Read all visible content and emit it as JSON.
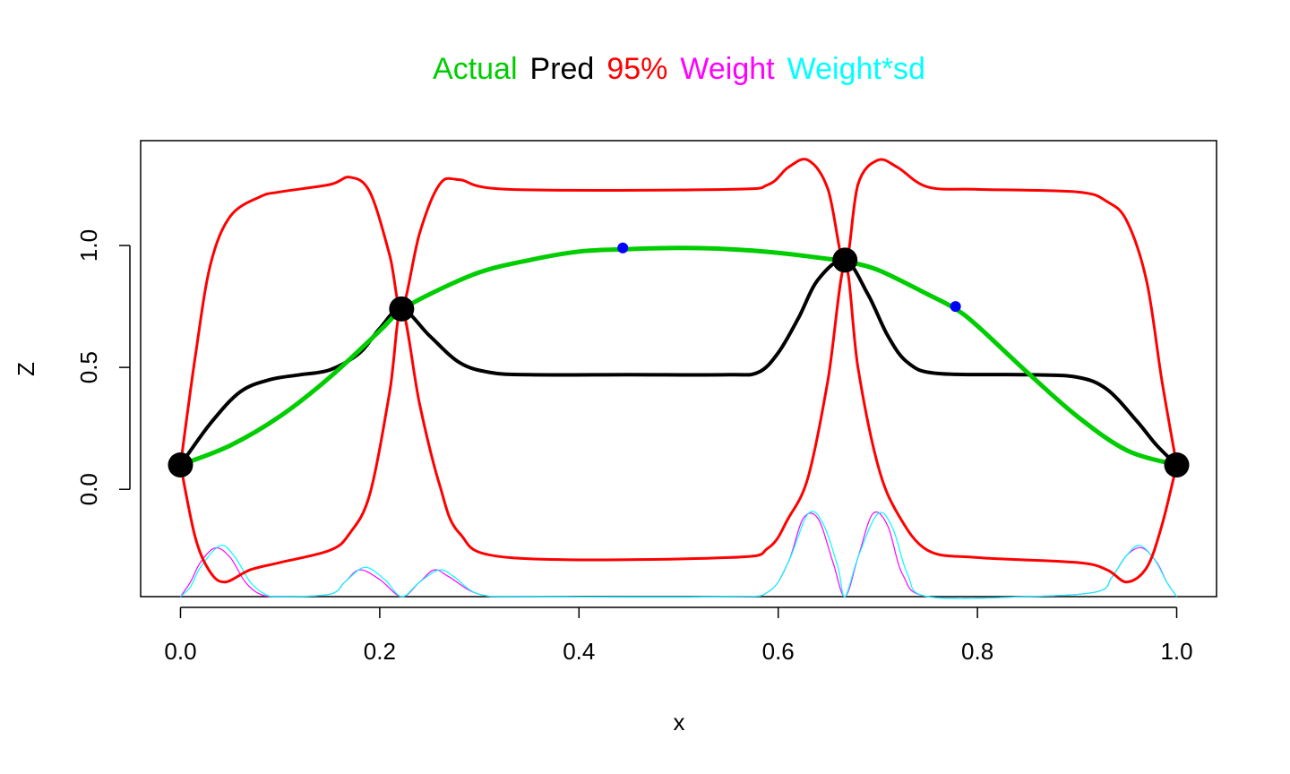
{
  "chart_data": {
    "type": "line",
    "title_parts": [
      {
        "text": "Actual",
        "color": "#00cd00"
      },
      {
        "text": "Pred",
        "color": "#000000"
      },
      {
        "text": "95%",
        "color": "#ff0000"
      },
      {
        "text": "Weight",
        "color": "#ff00ff"
      },
      {
        "text": "Weight*sd",
        "color": "#00ffff"
      }
    ],
    "xlabel": "x",
    "ylabel": "Z",
    "xlim": [
      -0.04,
      1.04
    ],
    "ylim": [
      -0.44,
      1.43
    ],
    "x_ticks": [
      "0.0",
      "0.2",
      "0.4",
      "0.6",
      "0.8",
      "1.0"
    ],
    "y_ticks": [
      "0.0",
      "0.5",
      "1.0"
    ],
    "series": [
      {
        "name": "Actual",
        "color": "#00cd00",
        "x": [
          0,
          0.05,
          0.1,
          0.15,
          0.2,
          0.22,
          0.25,
          0.3,
          0.35,
          0.4,
          0.45,
          0.5,
          0.55,
          0.6,
          0.65,
          0.667,
          0.7,
          0.75,
          0.778,
          0.8,
          0.85,
          0.9,
          0.95,
          1.0
        ],
        "y": [
          0.1,
          0.18,
          0.3,
          0.46,
          0.65,
          0.73,
          0.8,
          0.89,
          0.94,
          0.975,
          0.985,
          0.99,
          0.985,
          0.97,
          0.945,
          0.935,
          0.9,
          0.8,
          0.74,
          0.67,
          0.48,
          0.3,
          0.16,
          0.1
        ]
      },
      {
        "name": "Pred",
        "color": "#000000",
        "x": [
          0,
          0.03,
          0.06,
          0.09,
          0.12,
          0.15,
          0.18,
          0.2,
          0.222,
          0.25,
          0.28,
          0.31,
          0.35,
          0.45,
          0.55,
          0.58,
          0.6,
          0.62,
          0.64,
          0.667,
          0.69,
          0.71,
          0.73,
          0.76,
          0.85,
          0.9,
          0.93,
          0.96,
          0.98,
          1.0
        ],
        "y": [
          0.1,
          0.27,
          0.4,
          0.45,
          0.47,
          0.49,
          0.56,
          0.66,
          0.74,
          0.63,
          0.52,
          0.48,
          0.47,
          0.47,
          0.47,
          0.48,
          0.56,
          0.7,
          0.86,
          0.94,
          0.8,
          0.63,
          0.52,
          0.475,
          0.47,
          0.46,
          0.41,
          0.28,
          0.18,
          0.1
        ]
      },
      {
        "name": "95% upper",
        "color": "#ff0000",
        "x": [
          0,
          0.015,
          0.03,
          0.05,
          0.08,
          0.1,
          0.15,
          0.17,
          0.19,
          0.21,
          0.222,
          0.24,
          0.26,
          0.28,
          0.33,
          0.55,
          0.59,
          0.61,
          0.63,
          0.65,
          0.667,
          0.68,
          0.7,
          0.72,
          0.75,
          0.8,
          0.9,
          0.93,
          0.95,
          0.97,
          0.985,
          1.0
        ],
        "y": [
          0.1,
          0.55,
          0.92,
          1.12,
          1.2,
          1.22,
          1.25,
          1.28,
          1.22,
          0.96,
          0.74,
          1.05,
          1.25,
          1.27,
          1.23,
          1.23,
          1.25,
          1.32,
          1.35,
          1.23,
          0.92,
          1.25,
          1.35,
          1.32,
          1.24,
          1.23,
          1.22,
          1.18,
          1.1,
          0.85,
          0.45,
          0.1
        ]
      },
      {
        "name": "95% lower",
        "color": "#ff0000",
        "x": [
          0,
          0.015,
          0.03,
          0.045,
          0.07,
          0.1,
          0.15,
          0.17,
          0.19,
          0.21,
          0.222,
          0.24,
          0.26,
          0.28,
          0.33,
          0.55,
          0.59,
          0.61,
          0.63,
          0.65,
          0.667,
          0.68,
          0.7,
          0.72,
          0.75,
          0.8,
          0.9,
          0.93,
          0.95,
          0.97,
          0.985,
          1.0
        ],
        "y": [
          0.1,
          -0.2,
          -0.34,
          -0.38,
          -0.33,
          -0.3,
          -0.25,
          -0.18,
          -0.02,
          0.4,
          0.74,
          0.35,
          0.02,
          -0.18,
          -0.28,
          -0.28,
          -0.24,
          -0.12,
          0.05,
          0.45,
          0.92,
          0.5,
          0.1,
          -0.1,
          -0.25,
          -0.28,
          -0.3,
          -0.33,
          -0.38,
          -0.32,
          -0.15,
          0.1
        ]
      },
      {
        "name": "Weight",
        "color": "#ff00ff",
        "x": [
          0,
          0.01,
          0.02,
          0.035,
          0.05,
          0.065,
          0.08,
          0.1,
          0.15,
          0.165,
          0.18,
          0.2,
          0.222,
          0.24,
          0.255,
          0.27,
          0.3,
          0.35,
          0.55,
          0.59,
          0.61,
          0.625,
          0.64,
          0.655,
          0.667,
          0.68,
          0.695,
          0.71,
          0.725,
          0.75,
          0.85,
          0.92,
          0.935,
          0.95,
          0.965,
          0.98,
          0.99,
          1.0
        ],
        "y": [
          -0.44,
          -0.38,
          -0.3,
          -0.24,
          -0.28,
          -0.38,
          -0.43,
          -0.44,
          -0.43,
          -0.38,
          -0.33,
          -0.37,
          -0.44,
          -0.38,
          -0.33,
          -0.36,
          -0.43,
          -0.44,
          -0.44,
          -0.42,
          -0.3,
          -0.12,
          -0.12,
          -0.3,
          -0.44,
          -0.28,
          -0.1,
          -0.15,
          -0.35,
          -0.44,
          -0.44,
          -0.42,
          -0.36,
          -0.27,
          -0.24,
          -0.3,
          -0.38,
          -0.44
        ]
      },
      {
        "name": "Weight*sd",
        "color": "#00ffff",
        "x": [
          0,
          0.01,
          0.02,
          0.04,
          0.055,
          0.07,
          0.085,
          0.1,
          0.15,
          0.165,
          0.185,
          0.205,
          0.222,
          0.24,
          0.26,
          0.275,
          0.3,
          0.35,
          0.55,
          0.59,
          0.61,
          0.63,
          0.645,
          0.66,
          0.667,
          0.68,
          0.7,
          0.715,
          0.73,
          0.75,
          0.85,
          0.92,
          0.935,
          0.95,
          0.963,
          0.978,
          0.99,
          1.0
        ],
        "y": [
          -0.44,
          -0.4,
          -0.32,
          -0.23,
          -0.28,
          -0.38,
          -0.43,
          -0.44,
          -0.43,
          -0.38,
          -0.32,
          -0.37,
          -0.44,
          -0.38,
          -0.33,
          -0.36,
          -0.43,
          -0.44,
          -0.44,
          -0.42,
          -0.3,
          -0.1,
          -0.14,
          -0.32,
          -0.44,
          -0.28,
          -0.1,
          -0.16,
          -0.35,
          -0.44,
          -0.44,
          -0.42,
          -0.36,
          -0.27,
          -0.23,
          -0.29,
          -0.38,
          -0.44
        ]
      }
    ],
    "design_points": {
      "color": "#000000",
      "x": [
        0,
        0.222,
        0.667,
        1.0
      ],
      "y": [
        0.1,
        0.74,
        0.94,
        0.1
      ]
    },
    "candidate_points": {
      "color": "#0000ff",
      "x": [
        0.444,
        0.778
      ],
      "y": [
        0.99,
        0.75
      ]
    }
  }
}
